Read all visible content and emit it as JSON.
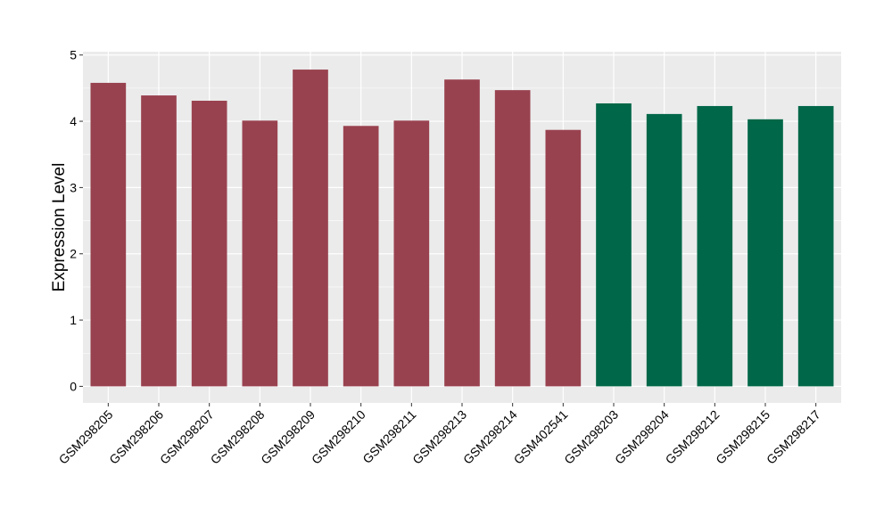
{
  "chart_data": {
    "type": "bar",
    "title": "",
    "xlabel": "",
    "ylabel": "Expression Level",
    "ylim": [
      -0.25,
      5.05
    ],
    "yticks": [
      0,
      1,
      2,
      3,
      4,
      5
    ],
    "grid": true,
    "legend": "none",
    "panel_background": "#EBEBEB",
    "gridline_color": "#FFFFFF",
    "categories": [
      "GSM298205",
      "GSM298206",
      "GSM298207",
      "GSM298208",
      "GSM298209",
      "GSM298210",
      "GSM298211",
      "GSM298213",
      "GSM298214",
      "GSM402541",
      "GSM298203",
      "GSM298204",
      "GSM298212",
      "GSM298215",
      "GSM298217"
    ],
    "values": [
      4.58,
      4.39,
      4.31,
      4.01,
      4.78,
      3.93,
      4.01,
      4.63,
      4.47,
      3.87,
      4.27,
      4.11,
      4.23,
      4.03,
      4.23
    ],
    "colors": [
      "#99424F",
      "#99424F",
      "#99424F",
      "#99424F",
      "#99424F",
      "#99424F",
      "#99424F",
      "#99424F",
      "#99424F",
      "#99424F",
      "#006748",
      "#006748",
      "#006748",
      "#006748",
      "#006748"
    ]
  }
}
